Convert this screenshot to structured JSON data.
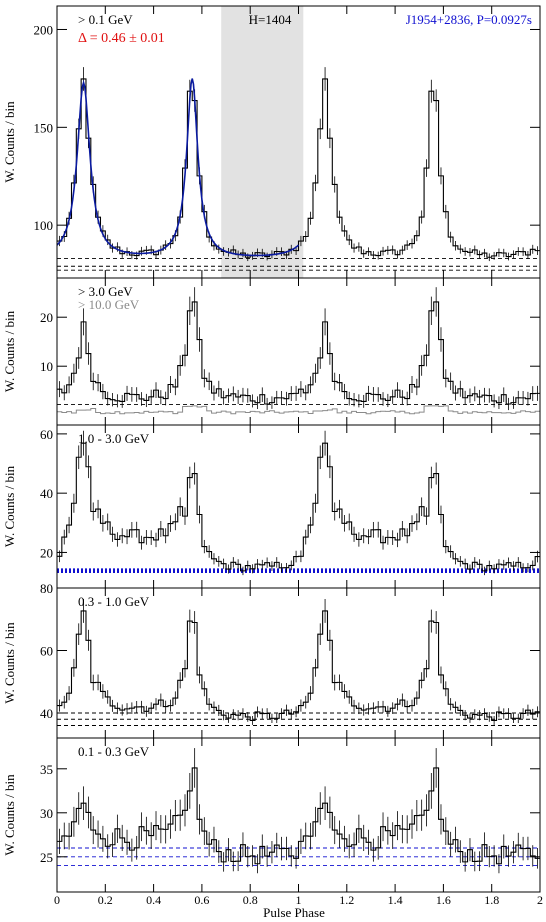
{
  "figure": {
    "xlabel": "Pulse Phase",
    "ylabel": "W. Counts / bin",
    "xlim": [
      0,
      2
    ],
    "xticks": [
      "0",
      "0.2",
      "0.4",
      "0.6",
      "0.8",
      "1",
      "1.2",
      "1.4",
      "1.6",
      "1.8",
      "2"
    ],
    "colors": {
      "axis": "#000000",
      "hist": "#000000",
      "fit": "#0a1aa0",
      "red": "#e01010",
      "blue": "#1010d0",
      "gray": "#8a8a8a",
      "shade": "#e2e2e2"
    }
  },
  "chart_data": [
    {
      "type": "histogram",
      "energy_label": "> 0.1 GeV",
      "delta_label": "Δ = 0.46 ± 0.01",
      "h_label": "H=1404",
      "pulsar_label": "J1954+2836, P=0.0927s",
      "ylim": [
        73,
        212
      ],
      "yticks": [
        100,
        150,
        200
      ],
      "offpulse_phase": [
        0.68,
        1.02
      ],
      "peaks": [
        {
          "phase": 0.11,
          "height": 172
        },
        {
          "phase": 0.56,
          "height": 174
        }
      ],
      "baseline": 82,
      "baseline_lines": [
        77,
        79,
        83
      ],
      "fit_curve": true
    },
    {
      "type": "histogram",
      "energy_label": "> 3.0 GeV",
      "energy_label2": "> 10.0 GeV",
      "ylim": [
        -2,
        28
      ],
      "yticks": [
        10,
        20
      ],
      "peaks": [
        {
          "phase": 0.11,
          "height": 17
        },
        {
          "phase": 0.56,
          "height": 25
        }
      ],
      "baseline": 3,
      "baseline_lines": [
        2.2
      ],
      "gray_series_level": 0.3
    },
    {
      "type": "histogram",
      "energy_label": "1.0 - 3.0 GeV",
      "ylim": [
        8,
        63
      ],
      "yticks": [
        20,
        40,
        60
      ],
      "peaks": [
        {
          "phase": 0.11,
          "height": 58
        },
        {
          "phase": 0.56,
          "height": 49
        }
      ],
      "baseline": 14,
      "bridge_level": 25,
      "baseline_lines": [
        13.5,
        14.2
      ],
      "thick_baseline": true
    },
    {
      "type": "histogram",
      "energy_label": "0.3 - 1.0 GeV",
      "ylim": [
        32,
        80
      ],
      "yticks": [
        40,
        60,
        80
      ],
      "peaks": [
        {
          "phase": 0.11,
          "height": 71
        },
        {
          "phase": 0.56,
          "height": 72
        }
      ],
      "baseline": 38,
      "bridge_level": 41,
      "baseline_lines": [
        36,
        38,
        40
      ]
    },
    {
      "type": "histogram",
      "energy_label": "0.1 - 0.3 GeV",
      "ylim": [
        21,
        38.5
      ],
      "yticks": [
        25,
        30,
        35
      ],
      "peaks": [
        {
          "phase": 0.11,
          "height": 31
        },
        {
          "phase": 0.56,
          "height": 35
        }
      ],
      "baseline": 25,
      "bridge_level": 27,
      "baseline_lines": [
        24,
        25,
        26
      ]
    }
  ]
}
